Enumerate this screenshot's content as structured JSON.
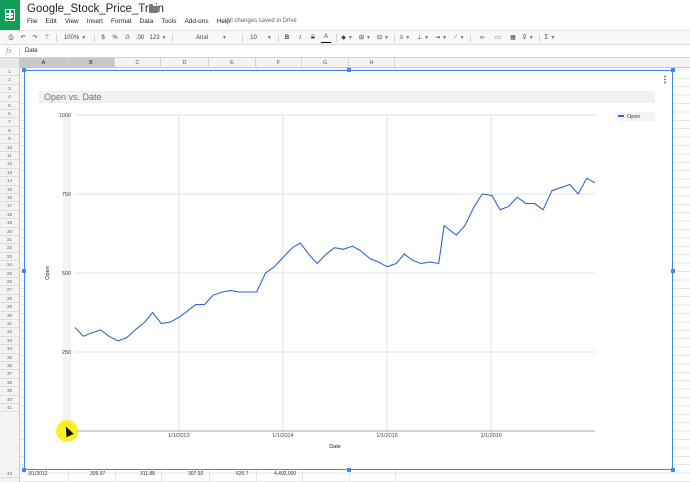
{
  "app": {
    "title": "Google_Stock_Price_Train",
    "save_status": "All changes saved in Drive",
    "menu": [
      "File",
      "Edit",
      "View",
      "Insert",
      "Format",
      "Data",
      "Tools",
      "Add-ons",
      "Help"
    ]
  },
  "toolbar": {
    "zoom": "100%",
    "currency": "$",
    "percent": "%",
    "decimal_decrease": ".0",
    "decimal_increase": ".00",
    "more_formats": "123",
    "font": "Arial",
    "font_size": "10",
    "bold": "B",
    "italic": "I",
    "strikethrough": "S",
    "text_color": "A",
    "sum": "Σ"
  },
  "formula_bar": {
    "fx": "fx",
    "value": "Date"
  },
  "grid": {
    "columns": [
      "A",
      "B",
      "C",
      "D",
      "E",
      "F",
      "G",
      "H"
    ],
    "selected_columns": [
      "A",
      "B"
    ],
    "rows": [
      "1",
      "2",
      "3",
      "4",
      "5",
      "6",
      "7",
      "8",
      "9",
      "10",
      "11",
      "12",
      "13",
      "14",
      "15",
      "16",
      "17",
      "18",
      "19",
      "20",
      "21",
      "22",
      "23",
      "24",
      "25",
      "26",
      "27",
      "28",
      "29",
      "30",
      "31",
      "32",
      "33",
      "34",
      "35",
      "36",
      "37",
      "38",
      "39",
      "40",
      "41",
      "42"
    ],
    "partial_row": {
      "date": "3/1/2012",
      "open": "309.97",
      "high": "311.88",
      "low": "307.92",
      "close": "620.7",
      "volume": "4,492,000"
    }
  },
  "chart_data": {
    "type": "line",
    "title": "Open vs. Date",
    "xlabel": "Date",
    "ylabel": "Open",
    "y_ticks": [
      "250",
      "500",
      "750",
      "1000"
    ],
    "x_ticks": [
      "1/1/2013",
      "1/1/2014",
      "1/1/2015",
      "1/1/2016"
    ],
    "ylim": [
      0,
      1000
    ],
    "xlim": [
      "2012-01-03",
      "2016-12-30"
    ],
    "legend": "right",
    "legend_entries": [
      "Open"
    ],
    "grid": true,
    "colors": {
      "Open": "#3366cc"
    },
    "series": [
      {
        "name": "Open",
        "x": [
          "2012-01-03",
          "2012-02-01",
          "2012-03-01",
          "2012-04-02",
          "2012-05-01",
          "2012-06-01",
          "2012-07-02",
          "2012-08-01",
          "2012-09-04",
          "2012-10-01",
          "2012-11-01",
          "2012-12-03",
          "2013-01-02",
          "2013-02-01",
          "2013-03-01",
          "2013-04-01",
          "2013-05-01",
          "2013-06-03",
          "2013-07-01",
          "2013-08-01",
          "2013-09-03",
          "2013-10-01",
          "2013-11-01",
          "2013-12-02",
          "2014-01-02",
          "2014-02-03",
          "2014-03-03",
          "2014-04-01",
          "2014-05-01",
          "2014-06-02",
          "2014-07-01",
          "2014-08-01",
          "2014-09-02",
          "2014-10-01",
          "2014-11-03",
          "2014-12-01",
          "2015-01-02",
          "2015-02-02",
          "2015-03-02",
          "2015-04-01",
          "2015-05-01",
          "2015-06-01",
          "2015-07-01",
          "2015-07-20",
          "2015-08-03",
          "2015-09-01",
          "2015-10-01",
          "2015-11-02",
          "2015-12-01",
          "2016-01-04",
          "2016-02-01",
          "2016-03-01",
          "2016-04-01",
          "2016-05-02",
          "2016-06-01",
          "2016-07-01",
          "2016-08-01",
          "2016-09-01",
          "2016-10-03",
          "2016-11-01",
          "2016-12-01",
          "2016-12-30"
        ],
        "values": [
          328,
          300,
          310,
          320,
          300,
          285,
          295,
          320,
          345,
          375,
          340,
          345,
          360,
          380,
          400,
          400,
          430,
          440,
          445,
          440,
          440,
          440,
          500,
          520,
          550,
          580,
          595,
          560,
          530,
          560,
          580,
          575,
          585,
          570,
          545,
          535,
          520,
          530,
          560,
          540,
          530,
          535,
          530,
          650,
          640,
          620,
          650,
          710,
          750,
          745,
          700,
          710,
          740,
          720,
          720,
          700,
          760,
          770,
          780,
          750,
          800,
          785
        ]
      }
    ]
  }
}
